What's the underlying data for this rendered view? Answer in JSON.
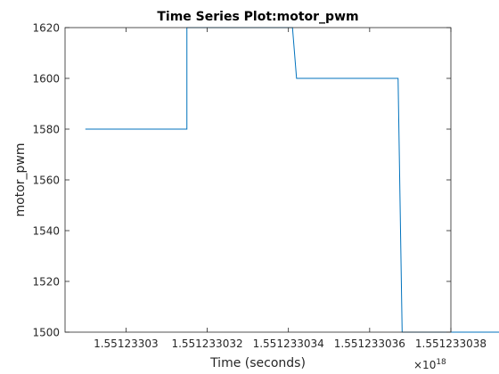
{
  "chart_data": {
    "type": "line",
    "title": "Time Series Plot:motor_pwm",
    "xlabel": "Time (seconds)",
    "ylabel": "motor_pwm",
    "x_exponent_label": "×10",
    "x_exponent_power": "18",
    "xlim": [
      1.5512330285,
      1.551233038
    ],
    "ylim": [
      1500,
      1620
    ],
    "x_ticks": [
      1.55123303,
      1.551233032,
      1.551233034,
      1.551233036,
      1.551233038
    ],
    "x_tick_labels": [
      "1.55123303",
      "1.551233032",
      "1.551233034",
      "1.551233036",
      "1.551233038"
    ],
    "y_ticks": [
      1500,
      1520,
      1540,
      1560,
      1580,
      1600,
      1620
    ],
    "y_tick_labels": [
      "1500",
      "1520",
      "1540",
      "1560",
      "1580",
      "1600",
      "1620"
    ],
    "grid": false,
    "series": [
      {
        "color": "#0072BD",
        "x": [
          1.551233029,
          1.5512330315,
          1.5512330315,
          1.5512330316,
          1.5512330317,
          1.5512330341,
          1.5512330342,
          1.5512330343,
          1.5512330367,
          1.5512330368,
          1.5512330369,
          1.5512330393
        ],
        "y": [
          1580,
          1580,
          1620,
          1620,
          1620,
          1620,
          1600,
          1600,
          1600,
          1500,
          1500,
          1500
        ]
      }
    ]
  }
}
